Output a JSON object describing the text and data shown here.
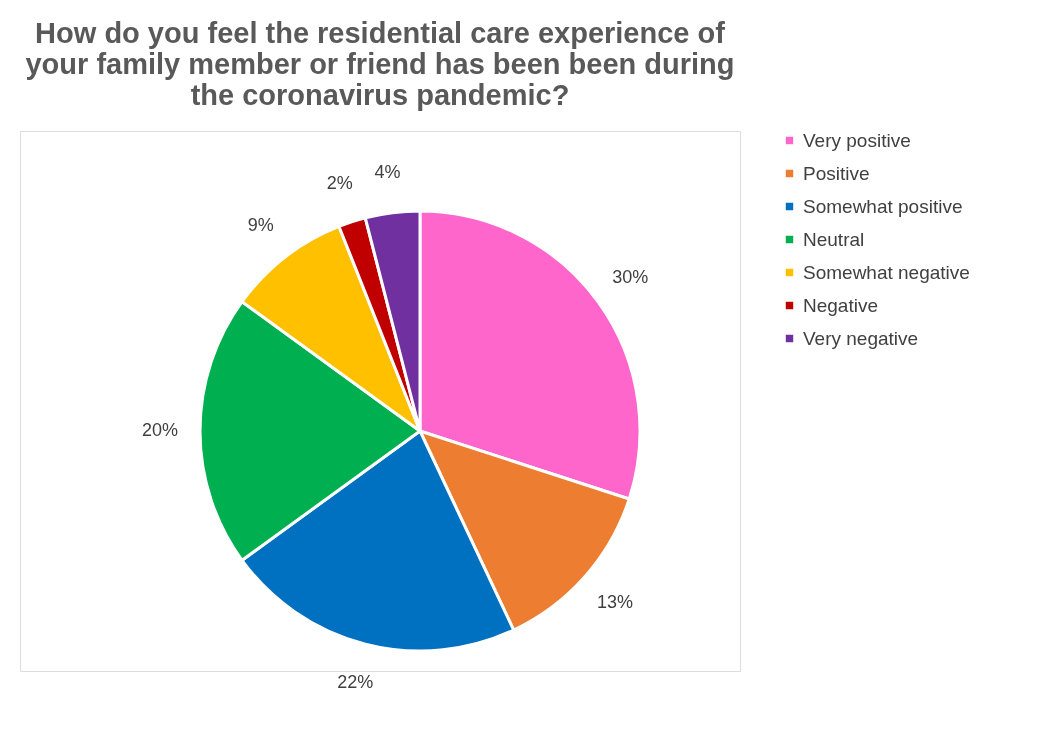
{
  "chart_data": {
    "type": "pie",
    "title": "How do you feel the residential care experience of your family member or friend has been been during the coronavirus pandemic?",
    "categories": [
      "Very positive",
      "Positive",
      "Somewhat positive",
      "Neutral",
      "Somewhat negative",
      "Negative",
      "Very negative"
    ],
    "values": [
      30,
      13,
      22,
      20,
      9,
      2,
      4
    ],
    "value_labels": [
      "30%",
      "13%",
      "22%",
      "20%",
      "9%",
      "2%",
      "4%"
    ],
    "colors": [
      "#ff66cc",
      "#ed7d31",
      "#0070c0",
      "#00b050",
      "#ffc000",
      "#c00000",
      "#7030a0"
    ],
    "legend": "right"
  }
}
